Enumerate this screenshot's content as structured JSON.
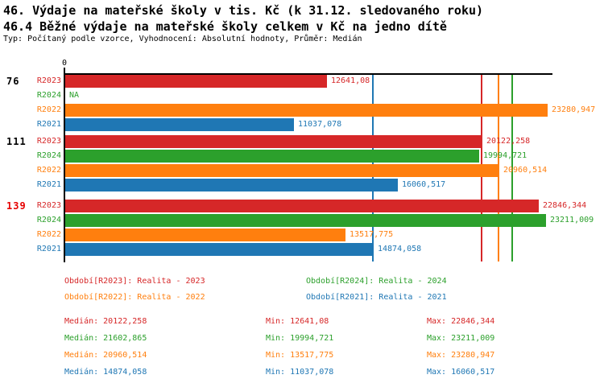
{
  "header": {
    "title1": "46. Výdaje na mateřské školy v tis. Kč (k 31.12. sledovaného roku)",
    "title2": "46.4 Běžné výdaje na mateřské školy celkem v Kč na jedno dítě",
    "subtitle": "Typ: Počítaný podle vzorce, Vyhodnocení: Absolutní hodnoty, Průměr: Medián"
  },
  "colors": {
    "text": "#000000",
    "highlight": "#e60000",
    "axis": "#000000",
    "background": "#ffffff"
  },
  "chart_data": {
    "type": "bar",
    "orientation": "horizontal-grouped",
    "xlim": [
      0,
      23500
    ],
    "x_axis": {
      "zero_label": "0"
    },
    "grid": false,
    "series_order": [
      "R2023",
      "R2024",
      "R2022",
      "R2021"
    ],
    "series_colors": {
      "R2023": "#d62728",
      "R2024": "#2ca02c",
      "R2022": "#ff7f0e",
      "R2021": "#1f77b4"
    },
    "groups": [
      {
        "label": "76",
        "highlighted": false,
        "bars": [
          {
            "series": "R2023",
            "value": 12641.08,
            "label": "12641,08"
          },
          {
            "series": "R2024",
            "value": null,
            "label": "NA"
          },
          {
            "series": "R2022",
            "value": 23280.947,
            "label": "23280,947"
          },
          {
            "series": "R2021",
            "value": 11037.078,
            "label": "11037,078"
          }
        ]
      },
      {
        "label": "111",
        "highlighted": false,
        "bars": [
          {
            "series": "R2023",
            "value": 20122.258,
            "label": "20122,258"
          },
          {
            "series": "R2024",
            "value": 19994.721,
            "label": "19994,721"
          },
          {
            "series": "R2022",
            "value": 20960.514,
            "label": "20960,514"
          },
          {
            "series": "R2021",
            "value": 16060.517,
            "label": "16060,517"
          }
        ]
      },
      {
        "label": "139",
        "highlighted": true,
        "bars": [
          {
            "series": "R2023",
            "value": 22846.344,
            "label": "22846,344"
          },
          {
            "series": "R2024",
            "value": 23211.009,
            "label": "23211,009"
          },
          {
            "series": "R2022",
            "value": 13517.775,
            "label": "13517,775"
          },
          {
            "series": "R2021",
            "value": 14874.058,
            "label": "14874,058"
          }
        ]
      }
    ],
    "median_lines": [
      {
        "series": "R2023",
        "value": 20122.258
      },
      {
        "series": "R2024",
        "value": 21602.865
      },
      {
        "series": "R2022",
        "value": 20960.514
      },
      {
        "series": "R2021",
        "value": 14874.058
      }
    ]
  },
  "legend": {
    "items": [
      {
        "series": "R2023",
        "label": "Období[R2023]: Realita - 2023"
      },
      {
        "series": "R2024",
        "label": "Období[R2024]: Realita - 2024"
      },
      {
        "series": "R2022",
        "label": "Období[R2022]: Realita - 2022"
      },
      {
        "series": "R2021",
        "label": "Období[R2021]: Realita - 2021"
      }
    ]
  },
  "stats": {
    "rows": [
      {
        "series": "R2023",
        "median": "Medián: 20122,258",
        "min": "Min: 12641,08",
        "max": "Max: 22846,344"
      },
      {
        "series": "R2024",
        "median": "Medián: 21602,865",
        "min": "Min: 19994,721",
        "max": "Max: 23211,009"
      },
      {
        "series": "R2022",
        "median": "Medián: 20960,514",
        "min": "Min: 13517,775",
        "max": "Max: 23280,947"
      },
      {
        "series": "R2021",
        "median": "Medián: 14874,058",
        "min": "Min: 11037,078",
        "max": "Max: 16060,517"
      }
    ]
  }
}
